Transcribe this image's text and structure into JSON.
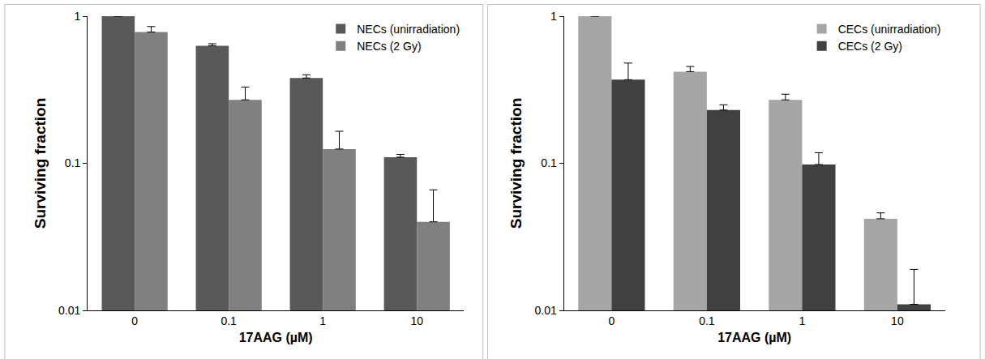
{
  "chart_data": [
    {
      "type": "bar",
      "x_label": "17AAG (µM)",
      "y_label": "Surviving fraction",
      "categories": [
        "0",
        "0.1",
        "1",
        "10"
      ],
      "series": [
        {
          "name": "NECs (unirradiation)",
          "color": "#595959",
          "values": [
            1,
            0.63,
            0.38,
            0.11
          ],
          "errors": [
            0,
            0.02,
            0.02,
            0.005
          ]
        },
        {
          "name": "NECs (2 Gy)",
          "color": "#808080",
          "values": [
            0.78,
            0.27,
            0.125,
            0.04
          ],
          "errors": [
            0.07,
            0.06,
            0.04,
            0.026
          ]
        }
      ],
      "log": "y",
      "ylim": [
        0.01,
        1
      ],
      "yticks": [
        0.01,
        0.1,
        1
      ],
      "grid": false,
      "legend": "upper right"
    },
    {
      "type": "bar",
      "x_label": "17AAG (µM)",
      "y_label": "Surviving fraction",
      "categories": [
        "0",
        "0.1",
        "1",
        "10"
      ],
      "series": [
        {
          "name": "CECs (unirradiation)",
          "color": "#a6a6a6",
          "values": [
            1,
            0.42,
            0.27,
            0.042
          ],
          "errors": [
            0,
            0.035,
            0.025,
            0.004
          ]
        },
        {
          "name": "CECs (2 Gy)",
          "color": "#404040",
          "values": [
            0.37,
            0.23,
            0.098,
            0.011
          ],
          "errors": [
            0.11,
            0.02,
            0.02,
            0.008
          ]
        }
      ],
      "log": "y",
      "ylim": [
        0.01,
        1
      ],
      "yticks": [
        0.01,
        0.1,
        1
      ],
      "grid": false,
      "legend": "upper right"
    }
  ]
}
